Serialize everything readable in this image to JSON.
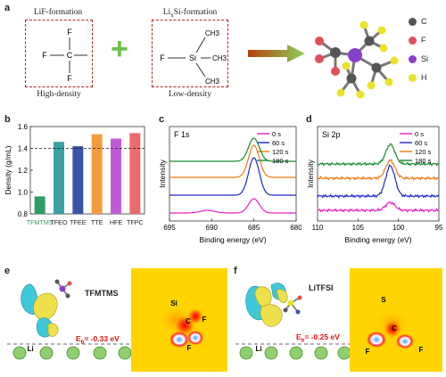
{
  "panel_a": {
    "label": "a",
    "left_box": {
      "title": "LiF-formation",
      "caption": "High-density",
      "atoms": {
        "center": "C",
        "top": "F",
        "left": "F",
        "bottom": "F"
      }
    },
    "right_box": {
      "title_main": "Li",
      "title_sub": "x",
      "title_rest": "Si-formation",
      "caption": "Low-density",
      "atoms": {
        "center": "Si",
        "left": "F",
        "groups": [
          "CH3",
          "CH3",
          "CH3"
        ]
      }
    },
    "plus": "+",
    "legend": [
      {
        "symbol": "C",
        "color": "#555555"
      },
      {
        "symbol": "F",
        "color": "#e0505a"
      },
      {
        "symbol": "Si",
        "color": "#8a3fc7"
      },
      {
        "symbol": "H",
        "color": "#e9e22a"
      }
    ]
  },
  "chart_data": [
    {
      "panel": "b",
      "type": "bar",
      "ylabel": "Density (g/mL)",
      "ylim": [
        0.8,
        1.6
      ],
      "yticks": [
        "0.8",
        "1.0",
        "1.2",
        "1.4",
        "1.6"
      ],
      "categories": [
        "TFMTMS",
        "TFEO",
        "TFEE",
        "TTE",
        "HFE",
        "TFPC"
      ],
      "values": [
        0.96,
        1.46,
        1.42,
        1.53,
        1.49,
        1.54
      ],
      "colors": [
        "#2e9d63",
        "#3ba0a2",
        "#3a54a8",
        "#f39c3d",
        "#c05bd8",
        "#ec6a6e"
      ],
      "reference_line": 1.4
    },
    {
      "panel": "c",
      "type": "line",
      "title": "F 1s",
      "xlabel": "Binding energy (eV)",
      "ylabel": "Intensity",
      "xticks": [
        "695",
        "690",
        "685",
        "680"
      ],
      "xlim": [
        695,
        680
      ],
      "series": [
        {
          "name": "0 s",
          "color": "#e022c8",
          "peak": 685.0
        },
        {
          "name": "60 s",
          "color": "#1d28c8",
          "peak": 685.0
        },
        {
          "name": "120 s",
          "color": "#ee7a10",
          "peak": 685.0
        },
        {
          "name": "180 s",
          "color": "#158a2a",
          "peak": 685.0
        }
      ]
    },
    {
      "panel": "d",
      "type": "line",
      "title": "Si 2p",
      "xlabel": "Binding energy (eV)",
      "ylabel": "Intensity",
      "xticks": [
        "110",
        "105",
        "100",
        "95"
      ],
      "xlim": [
        110,
        95
      ],
      "series": [
        {
          "name": "0 s",
          "color": "#e022c8",
          "peak": 101.0
        },
        {
          "name": "60 s",
          "color": "#1d28c8",
          "peak": 101.0
        },
        {
          "name": "120 s",
          "color": "#ee7a10",
          "peak": 101.0
        },
        {
          "name": "180 s",
          "color": "#158a2a",
          "peak": 101.0
        }
      ]
    }
  ],
  "panel_e": {
    "label": "e",
    "molecule": "TFMTMS",
    "energy_label": "E",
    "energy_sub": "b",
    "energy_value": "= -0.33 eV",
    "li_label": "Li",
    "map_labels": {
      "a": "Si",
      "b": "C",
      "c": "F",
      "d": "F"
    }
  },
  "panel_f": {
    "label": "f",
    "molecule": "LiTFSI",
    "energy_label": "E",
    "energy_sub": "b",
    "energy_value": "= -0.25 eV",
    "li_label": "Li",
    "map_labels": {
      "a": "S",
      "b": "C",
      "c": "F",
      "d": "F"
    }
  }
}
